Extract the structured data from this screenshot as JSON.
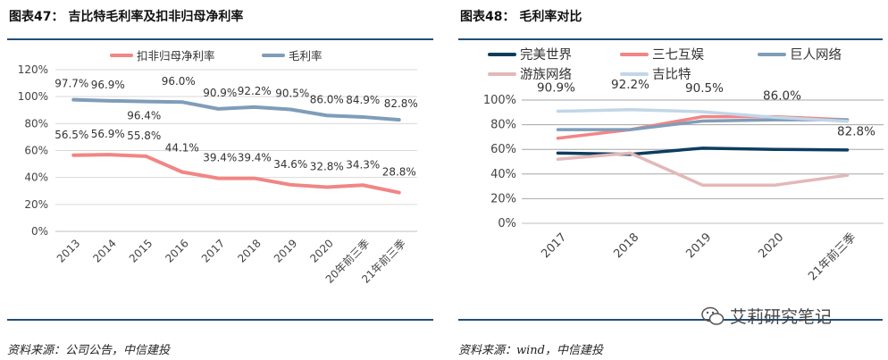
{
  "left_title": "图表47： 吉比特毛利率及扣非归母净利率",
  "right_title": "图表48： 毛利率对比",
  "left_source": "资料来源：公司公告，中信建投",
  "right_source": "资料来源：wind，中信建投",
  "watermark": "艾莉研究笔记",
  "colors": {
    "rule": "#1f4e79"
  },
  "chart_data": [
    {
      "type": "line",
      "title": "吉比特毛利率及扣非归母净利率",
      "categories": [
        "2013",
        "2014",
        "2015",
        "2016",
        "2017",
        "2018",
        "2019",
        "2020",
        "20年前三季",
        "21年前三季"
      ],
      "ylim": [
        0,
        120
      ],
      "yticks": [
        "0%",
        "20%",
        "40%",
        "60%",
        "80%",
        "100%",
        "120%"
      ],
      "legend_position": "top",
      "series": [
        {
          "name": "扣非归母净利率",
          "color": "#f28585",
          "values": [
            56.5,
            56.9,
            55.8,
            44.1,
            39.4,
            39.4,
            34.6,
            32.8,
            34.3,
            28.8
          ],
          "labels": [
            "56.5%",
            "56.9%",
            "55.8%",
            "44.1%",
            "39.4%",
            "39.4%",
            "34.6%",
            "32.8%",
            "34.3%",
            "28.8%"
          ]
        },
        {
          "name": "毛利率",
          "color": "#7f9db9",
          "values": [
            97.7,
            96.9,
            96.4,
            96.0,
            90.9,
            92.2,
            90.5,
            86.0,
            84.9,
            82.8
          ],
          "labels": [
            "97.7%",
            "96.9%",
            "96.4%",
            "96.0%",
            "90.9%",
            "92.2%",
            "90.5%",
            "86.0%",
            "84.9%",
            "82.8%"
          ]
        }
      ]
    },
    {
      "type": "line",
      "title": "毛利率对比",
      "categories": [
        "2017",
        "2018",
        "2019",
        "2020",
        "21年前三季"
      ],
      "ylim": [
        0,
        100
      ],
      "yticks": [
        "0%",
        "20%",
        "40%",
        "60%",
        "80%",
        "100%"
      ],
      "legend_position": "top",
      "series": [
        {
          "name": "完美世界",
          "color": "#0d3d5e",
          "values": [
            57,
            56,
            61,
            60,
            59.5
          ]
        },
        {
          "name": "三七互娱",
          "color": "#f28585",
          "values": [
            69,
            76,
            86.5,
            86.5,
            84
          ]
        },
        {
          "name": "巨人网络",
          "color": "#7f9db9",
          "values": [
            76,
            76,
            83,
            84,
            84
          ]
        },
        {
          "name": "游族网络",
          "color": "#e3b8b8",
          "values": [
            52,
            57,
            31,
            31,
            39
          ]
        },
        {
          "name": "吉比特",
          "color": "#c2d6e8",
          "values": [
            90.9,
            92.2,
            90.5,
            86.0,
            82.8
          ],
          "labels": [
            "90.9%",
            "92.2%",
            "90.5%",
            "86.0%",
            "82.8%"
          ]
        }
      ]
    }
  ]
}
